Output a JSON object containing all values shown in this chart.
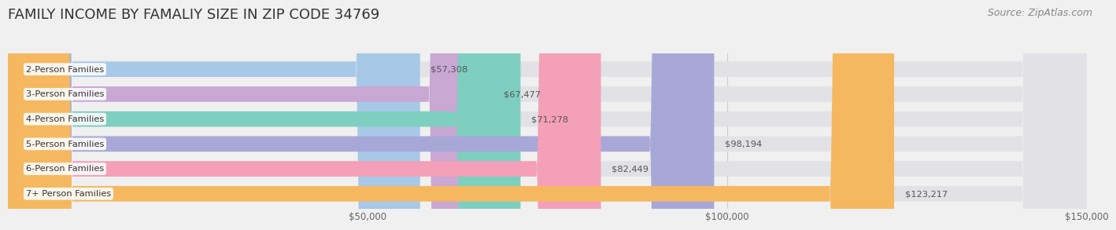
{
  "title": "FAMILY INCOME BY FAMALIY SIZE IN ZIP CODE 34769",
  "source": "Source: ZipAtlas.com",
  "categories": [
    "2-Person Families",
    "3-Person Families",
    "4-Person Families",
    "5-Person Families",
    "6-Person Families",
    "7+ Person Families"
  ],
  "values": [
    57308,
    67477,
    71278,
    98194,
    82449,
    123217
  ],
  "labels": [
    "$57,308",
    "$67,477",
    "$71,278",
    "$98,194",
    "$82,449",
    "$123,217"
  ],
  "bar_colors": [
    "#a8c8e8",
    "#c9a8d4",
    "#7ecfc0",
    "#a8a8d8",
    "#f4a0b8",
    "#f5b860"
  ],
  "background_color": "#f0f0f0",
  "xlim": [
    0,
    150000
  ],
  "xticks": [
    0,
    50000,
    100000,
    150000
  ],
  "xtick_labels": [
    "",
    "$50,000",
    "$100,000",
    "$150,000"
  ],
  "title_fontsize": 13,
  "label_fontsize": 9,
  "source_fontsize": 9
}
